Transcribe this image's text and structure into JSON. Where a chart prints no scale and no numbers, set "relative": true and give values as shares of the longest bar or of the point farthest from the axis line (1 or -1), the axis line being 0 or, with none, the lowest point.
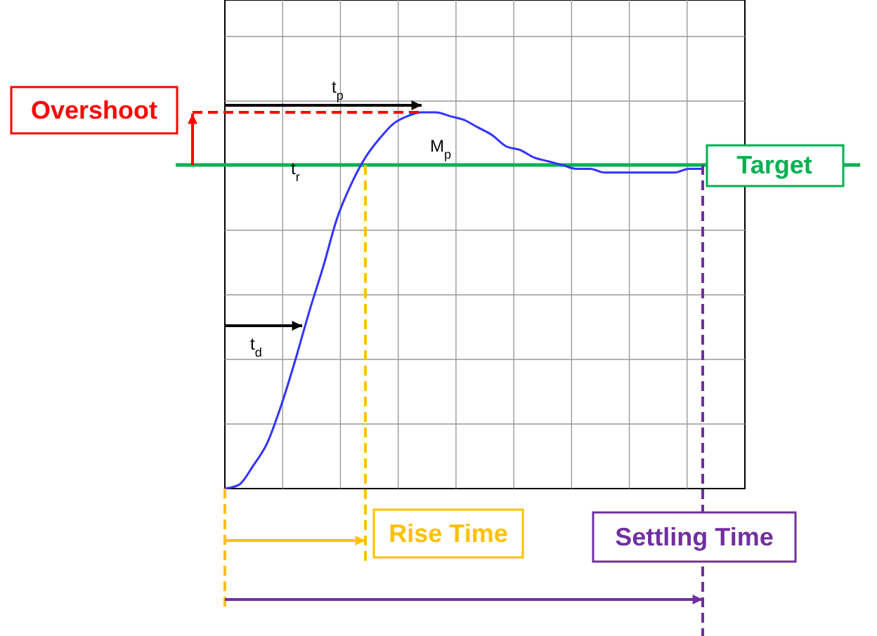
{
  "chart_data": {
    "type": "line",
    "relative": true,
    "grid": true,
    "categories": [
      null,
      null,
      null,
      null,
      null,
      null,
      null,
      null,
      null,
      null,
      null,
      null,
      null,
      null,
      null,
      null,
      null,
      null,
      null,
      null,
      null,
      null,
      null,
      null,
      null,
      null,
      null,
      null,
      null,
      null,
      null,
      null,
      null,
      null,
      null,
      null,
      null,
      null
    ],
    "series": [
      {
        "color": "#3333ff",
        "values": [
          0,
          0.01,
          0.06,
          0.12,
          0.22,
          0.34,
          0.47,
          0.59,
          0.72,
          0.81,
          0.88,
          0.93,
          0.97,
          0.99,
          1,
          1,
          0.99,
          0.98,
          0.96,
          0.94,
          0.91,
          0.9,
          0.88,
          0.87,
          0.86,
          0.85,
          0.85,
          0.84,
          0.84,
          0.84,
          0.84,
          0.84,
          0.84,
          0.85,
          0.85,
          null,
          null,
          null
        ]
      }
    ],
    "ref_lines": [
      {
        "axis": "y",
        "value": 0.86,
        "label": "Target",
        "color": "#00b050"
      }
    ],
    "annotations": [
      "Overshoot",
      "Rise Time",
      "Settling Time",
      "t$_{p}$",
      "t$_{r}$",
      "t$_{d}$",
      "M$_{p}$"
    ]
  }
}
